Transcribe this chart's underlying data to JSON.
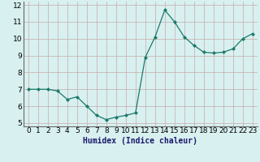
{
  "x": [
    0,
    1,
    2,
    3,
    4,
    5,
    6,
    7,
    8,
    9,
    10,
    11,
    12,
    13,
    14,
    15,
    16,
    17,
    18,
    19,
    20,
    21,
    22,
    23
  ],
  "y": [
    7.0,
    7.0,
    7.0,
    6.9,
    6.4,
    6.55,
    6.0,
    5.45,
    5.2,
    5.35,
    5.45,
    5.6,
    8.9,
    10.1,
    11.7,
    11.0,
    10.1,
    9.6,
    9.2,
    9.15,
    9.2,
    9.4,
    10.0,
    10.3
  ],
  "xlabel": "Humidex (Indice chaleur)",
  "xlim": [
    -0.5,
    23.5
  ],
  "ylim": [
    4.8,
    12.2
  ],
  "yticks": [
    5,
    6,
    7,
    8,
    9,
    10,
    11,
    12
  ],
  "xticks": [
    0,
    1,
    2,
    3,
    4,
    5,
    6,
    7,
    8,
    9,
    10,
    11,
    12,
    13,
    14,
    15,
    16,
    17,
    18,
    19,
    20,
    21,
    22,
    23
  ],
  "line_color": "#1a7a6a",
  "marker": "D",
  "marker_size": 2.0,
  "bg_color": "#d8f0f0",
  "grid_color": "#c8aaaa",
  "xlabel_fontsize": 7,
  "tick_fontsize": 6.5
}
